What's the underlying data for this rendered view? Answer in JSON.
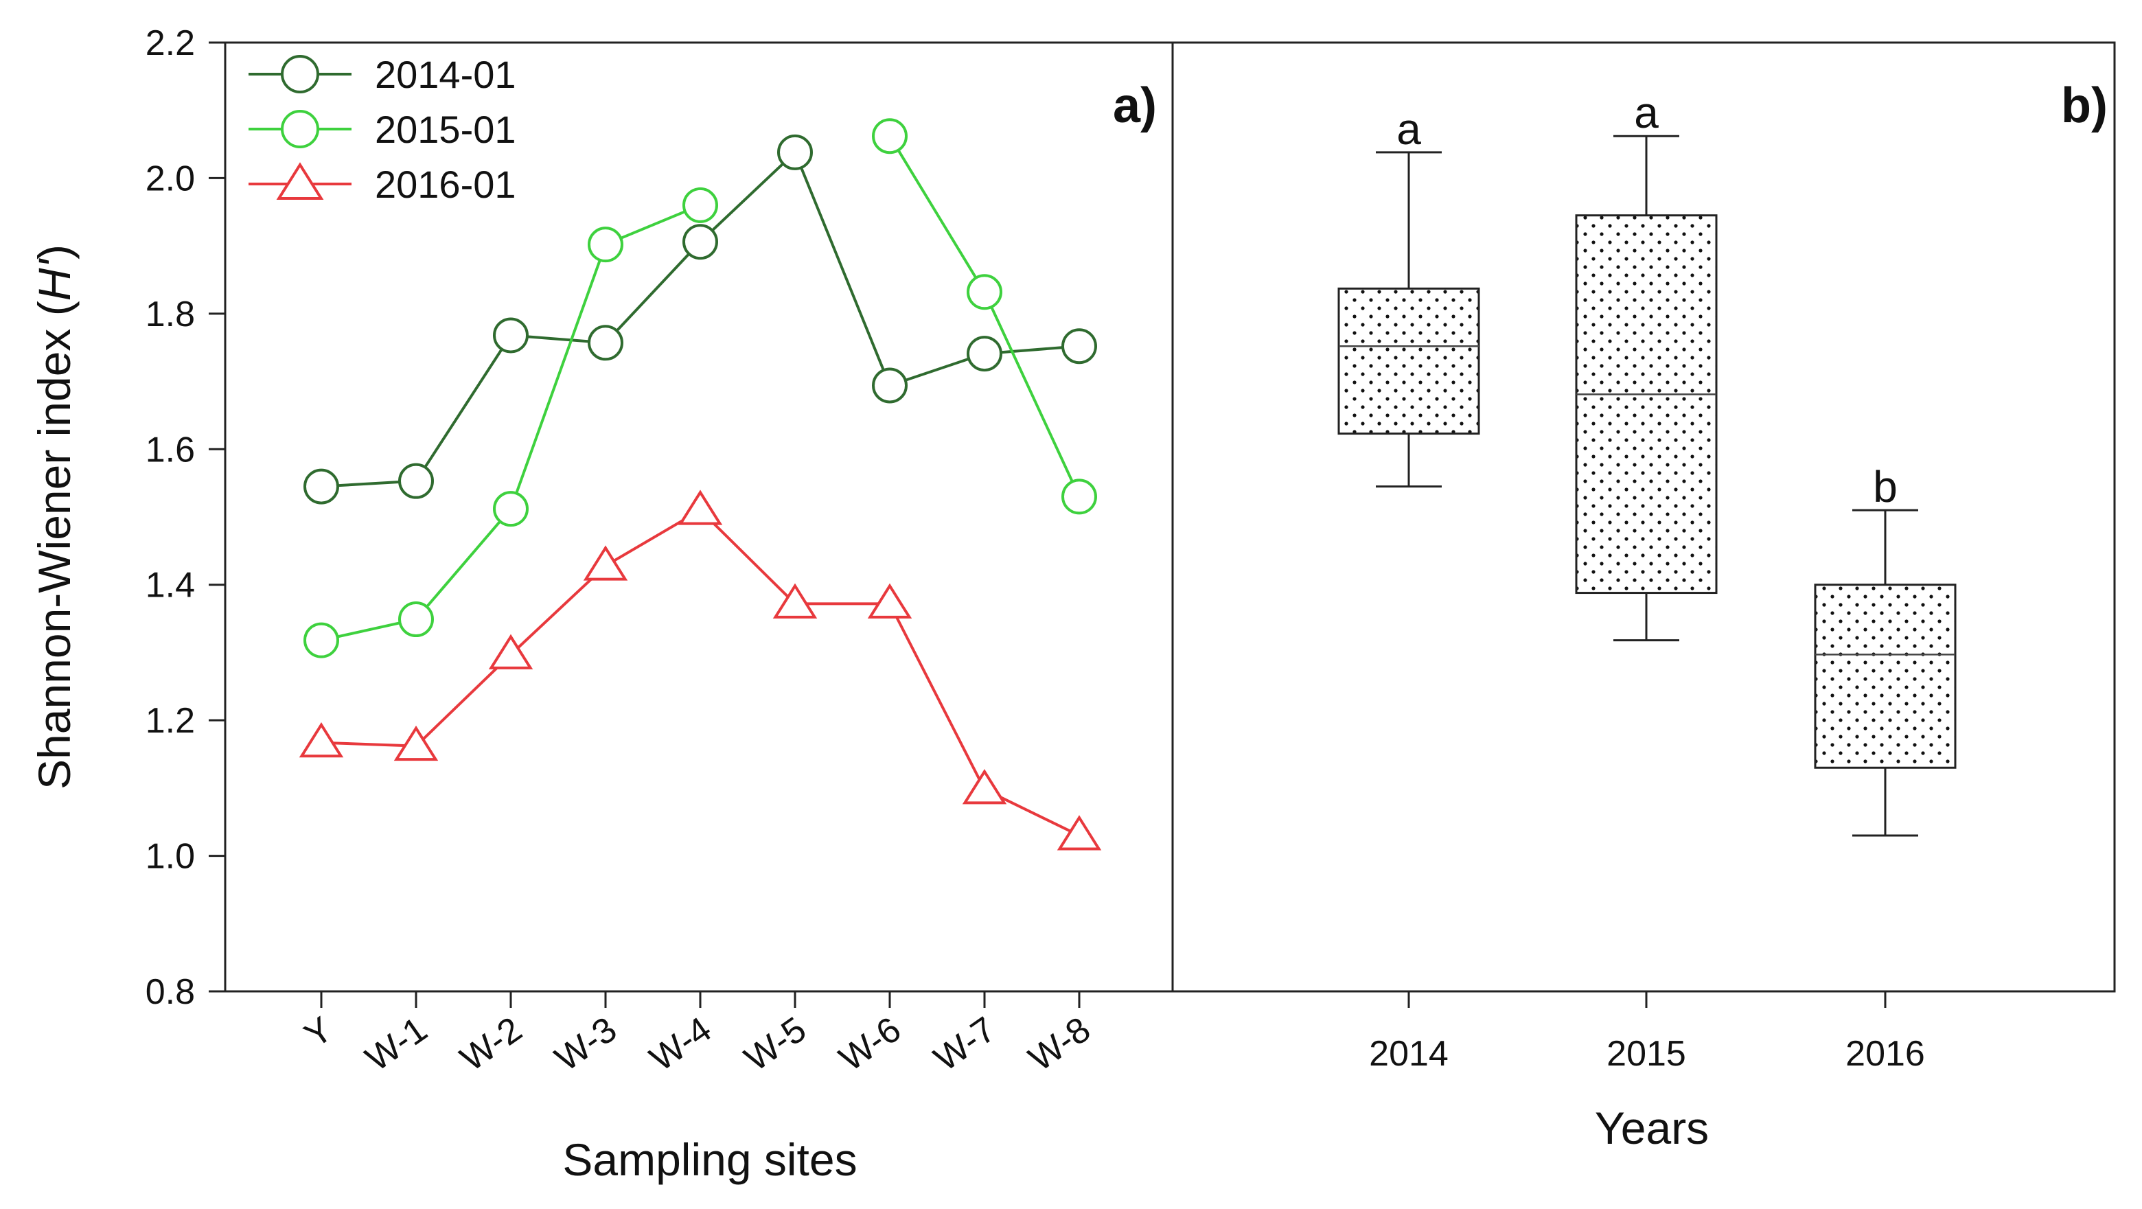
{
  "chart_data": [
    {
      "panel": "a)",
      "type": "line",
      "ylabel": "Shannon-Wiener index (H')",
      "ylabel_main": "Shannon-Wiener index (",
      "ylabel_italic": "H'",
      "ylabel_close": ")",
      "xlabel": "Sampling sites",
      "ylim": [
        0.8,
        2.2
      ],
      "yticks": [
        "0.8",
        "1.0",
        "1.2",
        "1.4",
        "1.6",
        "1.8",
        "2.0",
        "2.2"
      ],
      "categories": [
        "Y",
        "W-1",
        "W-2",
        "W-3",
        "W-4",
        "W-5",
        "W-6",
        "W-7",
        "W-8"
      ],
      "series": [
        {
          "name": "2014-01",
          "marker": "circle",
          "color": "#2f6b2f",
          "values": [
            1.545,
            1.553,
            1.768,
            1.757,
            1.906,
            2.038,
            1.694,
            1.741,
            1.752
          ]
        },
        {
          "name": "2015-01",
          "marker": "circle",
          "color": "#3ed13e",
          "values": [
            1.318,
            1.349,
            1.512,
            1.902,
            1.96,
            null,
            2.062,
            1.832,
            1.53
          ]
        },
        {
          "name": "2016-01",
          "marker": "triangle",
          "color": "#e8393d",
          "values": [
            1.167,
            1.162,
            1.297,
            1.428,
            1.51,
            1.372,
            1.372,
            1.098,
            1.03
          ]
        }
      ],
      "legend_position": "top-left"
    },
    {
      "panel": "b)",
      "type": "box",
      "xlabel": "Years",
      "ylim": [
        0.8,
        2.2
      ],
      "categories": [
        "2014",
        "2015",
        "2016"
      ],
      "boxes": [
        {
          "label": "2014",
          "min": 1.545,
          "q1": 1.623,
          "median": 1.752,
          "q3": 1.837,
          "max": 2.038,
          "group": "a"
        },
        {
          "label": "2015",
          "min": 1.318,
          "q1": 1.388,
          "median": 1.681,
          "q3": 1.945,
          "max": 2.062,
          "group": "a"
        },
        {
          "label": "2016",
          "min": 1.03,
          "q1": 1.13,
          "median": 1.297,
          "q3": 1.4,
          "max": 1.51,
          "group": "b"
        }
      ]
    }
  ]
}
